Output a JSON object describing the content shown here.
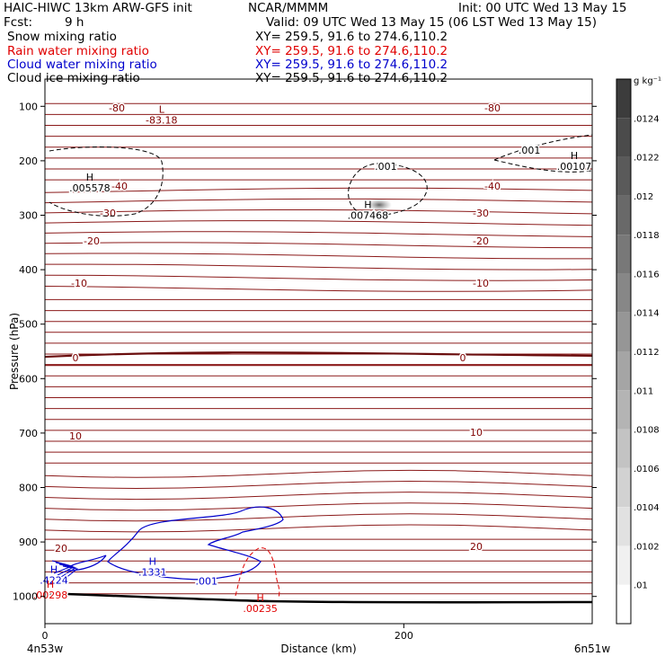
{
  "header": {
    "model": "HAIC-HIWC 13km ARW-GFS init",
    "org": "NCAR/MMMM",
    "init": "Init: 00 UTC Wed 13 May 15",
    "fcst_label": "Fcst:",
    "fcst_value": "9 h",
    "valid": "Valid: 09 UTC Wed 13 May 15 (06 LST Wed 13 May 15)"
  },
  "fields": [
    {
      "name": "Snow mixing ratio",
      "xy": "XY= 259.5, 91.6 to 274.6,110.2",
      "color": "#000000"
    },
    {
      "name": "Rain water mixing ratio",
      "xy": "XY= 259.5, 91.6 to 274.6,110.2",
      "color": "#e00000"
    },
    {
      "name": "Cloud water mixing ratio",
      "xy": "XY= 259.5, 91.6 to 274.6,110.2",
      "color": "#0000cc"
    },
    {
      "name": "Cloud ice mixing ratio",
      "xy": "XY= 259.5, 91.6 to 274.6,110.2",
      "color": "#000000"
    }
  ],
  "chart_data": {
    "type": "contour",
    "xlabel": "Distance (km)",
    "ylabel": "Pressure (hPa)",
    "x_ticks": [
      0,
      200
    ],
    "x_range": [
      0,
      305
    ],
    "y_ticks": [
      100,
      200,
      300,
      400,
      500,
      600,
      700,
      800,
      900,
      1000
    ],
    "y_range": [
      1050,
      50
    ],
    "x_endpoints": {
      "left": "4n53w",
      "right": "6n51w"
    },
    "colorbar": {
      "unit": "g kg⁻¹",
      "labels": [
        ".0124",
        ".0122",
        ".012",
        ".0118",
        ".0116",
        ".0114",
        ".0112",
        ".011",
        ".0108",
        ".0106",
        ".0104",
        ".0102",
        ".01"
      ]
    },
    "temperature_labels": [
      "-80",
      "-40",
      "-30",
      "-20",
      "-10",
      "0",
      "10",
      "20"
    ],
    "extrema": [
      {
        "type": "L",
        "value": "-83.18",
        "x": 65,
        "p": 115,
        "color": "#800000"
      },
      {
        "type": "H",
        "value": ".005578",
        "x": 25,
        "p": 240,
        "color": "#000000"
      },
      {
        "type": "H",
        "value": ".007468",
        "x": 180,
        "p": 290,
        "color": "#000000"
      },
      {
        "type": "H",
        "value": ".00107",
        "x": 295,
        "p": 200,
        "color": "#000000"
      },
      {
        "type": "H",
        "value": ".1331",
        "x": 60,
        "p": 945,
        "color": "#0000cc"
      },
      {
        "type": "H",
        "value": ".4224",
        "x": 5,
        "p": 960,
        "color": "#0000cc"
      },
      {
        "type": "H",
        "value": ".00298",
        "x": 3,
        "p": 987,
        "color": "#e00000"
      },
      {
        "type": "H",
        "value": ".00235",
        "x": 120,
        "p": 1012,
        "color": "#e00000"
      }
    ],
    "contour_labels": [
      {
        "text": ".001",
        "x": 190,
        "p": 210,
        "color": "#000000"
      },
      {
        "text": ".001",
        "x": 270,
        "p": 180,
        "color": "#000000"
      },
      {
        "text": ".001",
        "x": 90,
        "p": 972,
        "color": "#0000cc"
      }
    ]
  }
}
